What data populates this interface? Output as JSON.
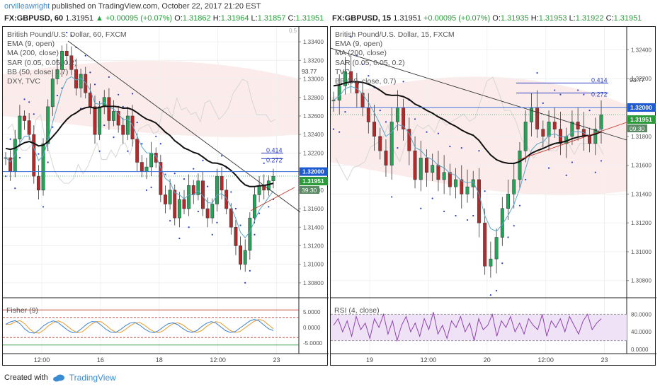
{
  "header": {
    "user": "orvilleawright",
    "published": "published on TradingView.com, October 22, 2017 21:20 EST"
  },
  "footer": {
    "created_with": "Created with",
    "brand": "TradingView"
  },
  "chart_data": [
    {
      "type": "candlestick",
      "header": {
        "symbol": "FX:GBPUSD, 60",
        "last": "1.31951",
        "change": "▲ +0.00095 (+0.07%)",
        "o": "1.31862",
        "h": "1.31964",
        "l": "1.31857",
        "c": "1.31951"
      },
      "legend": [
        "British Pound/U.S. Dollar, 60, FXCM",
        "EMA (9, open)",
        "MA (200, close)",
        "SAR (0.05, 0.05, 0.2)",
        "BB (50, close, 0.7)",
        "DXY, TVC"
      ],
      "price_axis": [
        "1.33400",
        "1.33200",
        "1.33000",
        "1.32800",
        "1.32600",
        "1.32400",
        "1.32200",
        "1.32000",
        "1.31800",
        "1.31600",
        "1.31400",
        "1.31200",
        "1.31000",
        "1.30800"
      ],
      "ylim": [
        1.307,
        1.335
      ],
      "x_ticks": [
        "12:00",
        "16",
        "18",
        "12:00",
        "23"
      ],
      "tags": {
        "level": "1.32000",
        "last": "1.31951",
        "countdown": "39:30",
        "dxy": "93.77",
        "dxy_top": "0.5"
      },
      "fib": {
        "a_label": "0.414",
        "b_label": "0.272",
        "a_value": 1.322,
        "b_value": 1.3217
      },
      "close_series": [
        1.3215,
        1.32,
        1.3235,
        1.326,
        1.3255,
        1.324,
        1.3195,
        1.318,
        1.323,
        1.327,
        1.33,
        1.331,
        1.333,
        1.3325,
        1.331,
        1.329,
        1.3305,
        1.3285,
        1.327,
        1.324,
        1.327,
        1.328,
        1.3255,
        1.3265,
        1.325,
        1.324,
        1.326,
        1.3235,
        1.321,
        1.32,
        1.3205,
        1.322,
        1.321,
        1.3175,
        1.3165,
        1.318,
        1.315,
        1.317,
        1.316,
        1.3185,
        1.3175,
        1.319,
        1.316,
        1.315,
        1.3165,
        1.3195,
        1.318,
        1.316,
        1.314,
        1.312,
        1.31,
        1.3115,
        1.315,
        1.3175,
        1.3185,
        1.318,
        1.319,
        1.3195
      ],
      "sub": {
        "label": "Fisher (9)",
        "axis": [
          "5.0000",
          "0.0000",
          "-5.0000"
        ],
        "ylim": [
          -7,
          7
        ],
        "fisher": [
          1.0,
          1.8,
          2.2,
          1.2,
          -0.5,
          -1.6,
          -1.8,
          -0.8,
          0.6,
          1.6,
          2.1,
          1.5,
          0.3,
          -0.9,
          -1.7,
          -1.4,
          -0.2,
          1.1,
          1.9,
          1.8,
          0.7,
          -0.6,
          -1.5,
          -1.6,
          -0.7,
          0.5,
          1.4,
          1.6,
          0.8,
          -0.4,
          -1.3,
          -1.7,
          -1.0,
          0.2,
          1.2,
          1.5,
          0.9,
          -0.3,
          -1.2,
          -1.6,
          -1.0,
          0.3,
          1.3,
          1.9,
          1.4,
          0.2,
          -1.0,
          -1.6,
          -1.3,
          -0.2,
          0.9,
          2.0,
          2.6,
          2.1,
          0.8,
          -0.4,
          -1.0
        ]
      }
    },
    {
      "type": "candlestick",
      "header": {
        "symbol": "FX:GBPUSD, 15",
        "last": "1.31951",
        "change": "+0.00095 (+0.07%)",
        "o": "1.31935",
        "h": "1.31953",
        "l": "1.31922",
        "c": "1.31951"
      },
      "legend": [
        "British Pound/U.S. Dollar, 15, FXCM",
        "EMA (9, open)",
        "MA (200, close)",
        "SAR (0.05, 0.05, 0.2)",
        "TVC",
        "BB (50, close, 0.7)"
      ],
      "price_axis": [
        "1.32400",
        "1.32200",
        "1.32000",
        "1.31800",
        "1.31600",
        "1.31400",
        "1.31200",
        "1.31000",
        "1.30800"
      ],
      "ylim": [
        1.3072,
        1.3252
      ],
      "x_ticks": [
        "19",
        "12:00",
        "20",
        "12:00",
        "23"
      ],
      "tags": {
        "level": "1.32000",
        "last": "1.31951",
        "countdown": "09:30",
        "dxy": "93.77"
      },
      "fib": {
        "a_label": "0.414",
        "b_label": "0.272",
        "a_value": 1.3217,
        "b_value": 1.3212
      },
      "close_series": [
        1.3205,
        1.3215,
        1.3225,
        1.3218,
        1.321,
        1.32,
        1.319,
        1.318,
        1.317,
        1.316,
        1.319,
        1.32,
        1.3185,
        1.317,
        1.315,
        1.3165,
        1.3155,
        1.316,
        1.315,
        1.3155,
        1.3145,
        1.315,
        1.314,
        1.3145,
        1.315,
        1.312,
        1.309,
        1.3095,
        1.311,
        1.313,
        1.314,
        1.315,
        1.317,
        1.319,
        1.32,
        1.3185,
        1.318,
        1.319,
        1.3185,
        1.3175,
        1.318,
        1.319,
        1.3185,
        1.318,
        1.3175,
        1.3185,
        1.3195
      ],
      "sub": {
        "label": "RSI (4, close)",
        "axis": [
          "80.0000",
          "40.0000",
          "0.0000"
        ],
        "ylim": [
          0,
          100
        ],
        "rsi": [
          55,
          70,
          40,
          65,
          30,
          75,
          45,
          60,
          25,
          70,
          50,
          80,
          35,
          65,
          20,
          55,
          75,
          40,
          60,
          30,
          70,
          45,
          85,
          35,
          55,
          25,
          65,
          50,
          75,
          40,
          60,
          20,
          70,
          45,
          55,
          80,
          30,
          65,
          50,
          75,
          40,
          60,
          35,
          70,
          55,
          45,
          80,
          30,
          65,
          50,
          70,
          40,
          75,
          55,
          35,
          65,
          80,
          45,
          60,
          70
        ]
      }
    }
  ]
}
